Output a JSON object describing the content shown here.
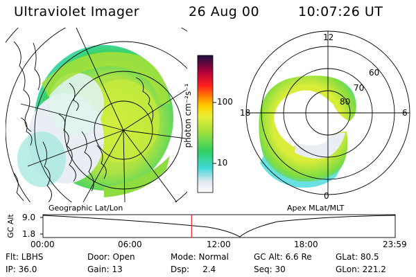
{
  "header": {
    "instrument": "Ultraviolet Imager",
    "date": "26 Aug 00",
    "time": "10:07:26 UT"
  },
  "colors": {
    "scale": [
      "#ffffff",
      "#dfe7ef",
      "#40d8d8",
      "#2fd060",
      "#a6e03a",
      "#e6f03a",
      "#ffd000",
      "#ff8000",
      "#ff2020",
      "#b0003a",
      "#1a1040"
    ]
  },
  "colorbar": {
    "label": "photon cm⁻²s⁻¹",
    "ticks": [
      "100",
      "10"
    ]
  },
  "left_panel": {
    "caption": "Geographic Lat/Lon"
  },
  "right_panel": {
    "caption": "Apex MLat/MLT",
    "mlt_labels": [
      "12",
      "18",
      "6",
      "0"
    ],
    "mlat_labels": [
      "60",
      "70",
      "80"
    ]
  },
  "timeline": {
    "ylabel": "GC Alt",
    "y_ticks": [
      "9.0",
      "1.8"
    ],
    "x_ticks": [
      "00:00",
      "06:00",
      "12:00",
      "18:00",
      "23:59"
    ],
    "current_time_hours": 10.124
  },
  "footer": {
    "flt": "Flt: LBHS",
    "door": "Door: Open",
    "mode": "Mode: Normal",
    "gcalt": "GC Alt: 6.6 Re",
    "glat": "GLat:  80.5",
    "ip": "IP: 36.0",
    "gain": "Gain: 13",
    "dsp": "Dsp:     2.4",
    "seq": "Seq: 30",
    "glon": "GLon: 221.2"
  }
}
